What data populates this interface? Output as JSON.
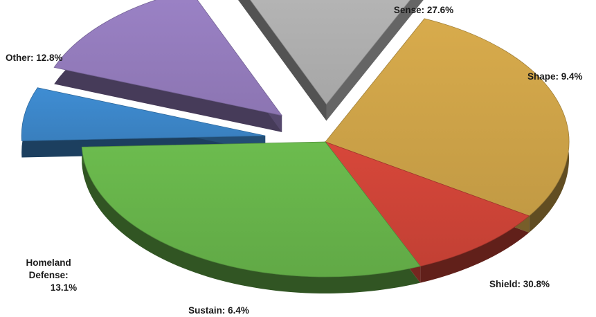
{
  "chart_data": {
    "type": "pie",
    "title": "",
    "style": "3d-exploded",
    "legend": "none",
    "slices": [
      {
        "label": "Sense: 27.6%",
        "value": 27.6,
        "color": "#d8ab4c",
        "exploded": false
      },
      {
        "label": "Shape: 9.4%",
        "value": 9.4,
        "color": "#d7473a",
        "exploded": false
      },
      {
        "label": "Shield: 30.8%",
        "value": 30.8,
        "color": "#6cbc4e",
        "exploded": false
      },
      {
        "label": "Sustain: 6.4%",
        "value": 6.4,
        "color": "#3f8dd3",
        "exploded": true
      },
      {
        "label": "Homeland Defense: 13.1%",
        "value": 13.1,
        "color": "#9b82c6",
        "exploded": true
      },
      {
        "label": "Other: 12.8%",
        "value": 12.8,
        "color": "#b8b8b8",
        "exploded": true
      }
    ]
  }
}
